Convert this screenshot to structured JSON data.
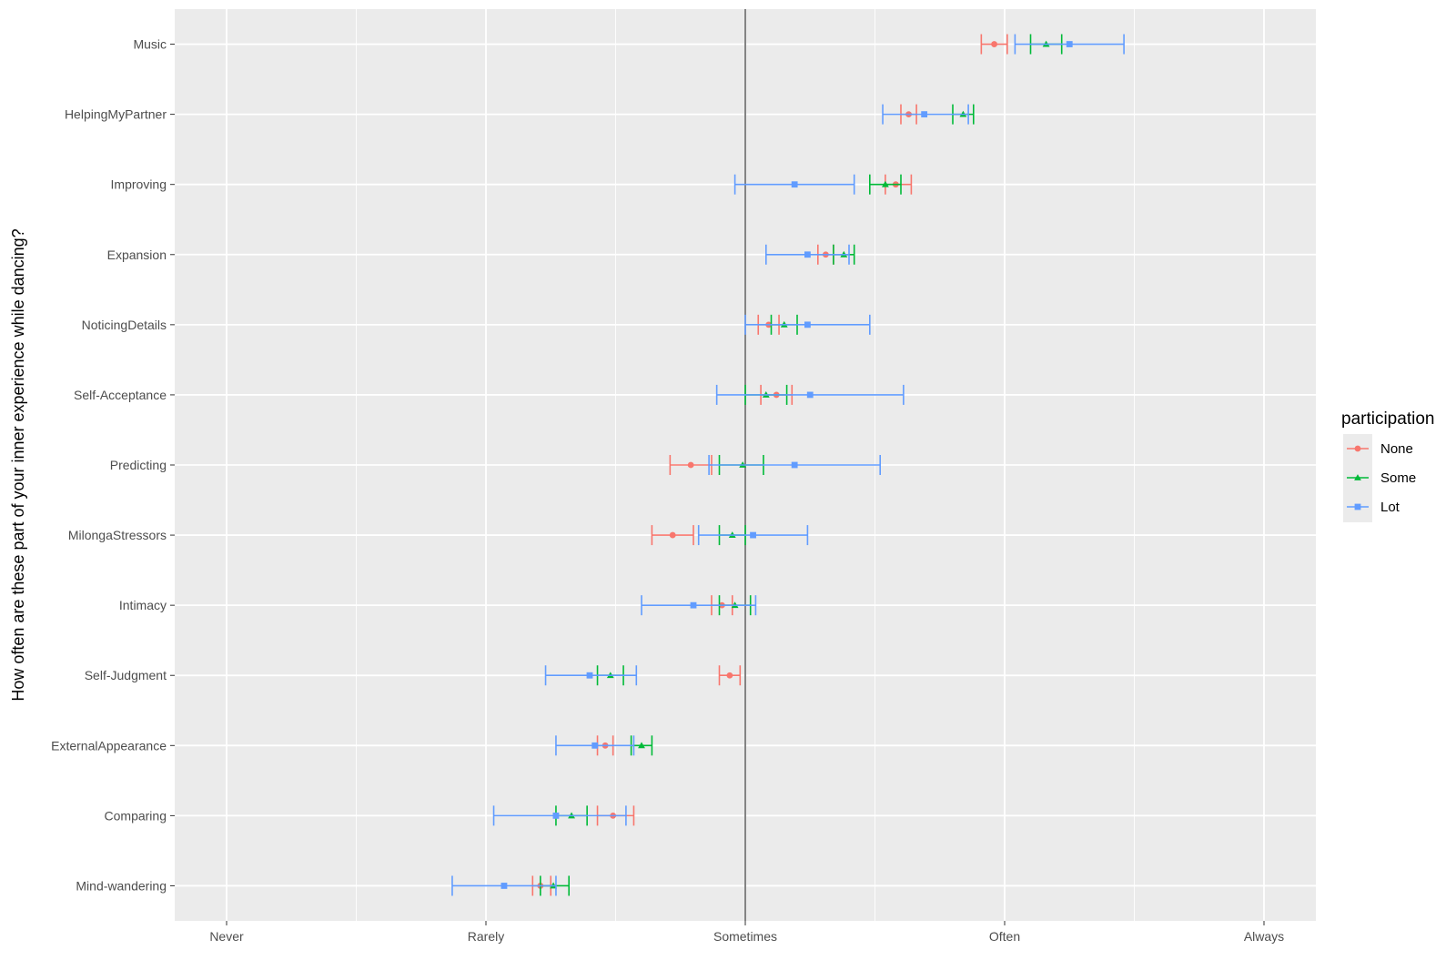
{
  "chart_data": {
    "type": "scatter",
    "subtype": "point-with-horizontal-error-bars",
    "title": "",
    "xlabel": "",
    "ylabel": "How often are these part of your inner experience while dancing?",
    "x_scale": "ordinal-likert",
    "x_ticks": [
      "Never",
      "Rarely",
      "Sometimes",
      "Often",
      "Always"
    ],
    "x_tick_values": [
      1,
      2,
      3,
      4,
      5
    ],
    "xlim": [
      0.8,
      5.2
    ],
    "reference_line_x": 3,
    "categories": [
      "Music",
      "HelpingMyPartner",
      "Improving",
      "Expansion",
      "NoticingDetails",
      "Self-Acceptance",
      "Predicting",
      "MilongaStressors",
      "Intimacy",
      "Self-Judgment",
      "ExternalAppearance",
      "Comparing",
      "Mind-wandering"
    ],
    "grid": true,
    "legend": {
      "title": "participation",
      "position": "right"
    },
    "series": [
      {
        "name": "None",
        "color": "#F8766D",
        "shape": "circle",
        "points": [
          {
            "category": "Music",
            "mean": 3.96,
            "lo": 3.91,
            "hi": 4.01
          },
          {
            "category": "HelpingMyPartner",
            "mean": 3.63,
            "lo": 3.6,
            "hi": 3.66
          },
          {
            "category": "Improving",
            "mean": 3.58,
            "lo": 3.54,
            "hi": 3.64
          },
          {
            "category": "Expansion",
            "mean": 3.31,
            "lo": 3.28,
            "hi": 3.34
          },
          {
            "category": "NoticingDetails",
            "mean": 3.09,
            "lo": 3.05,
            "hi": 3.13
          },
          {
            "category": "Self-Acceptance",
            "mean": 3.12,
            "lo": 3.06,
            "hi": 3.18
          },
          {
            "category": "Predicting",
            "mean": 2.79,
            "lo": 2.71,
            "hi": 2.87
          },
          {
            "category": "MilongaStressors",
            "mean": 2.72,
            "lo": 2.64,
            "hi": 2.8
          },
          {
            "category": "Intimacy",
            "mean": 2.91,
            "lo": 2.87,
            "hi": 2.95
          },
          {
            "category": "Self-Judgment",
            "mean": 2.94,
            "lo": 2.9,
            "hi": 2.98
          },
          {
            "category": "ExternalAppearance",
            "mean": 2.46,
            "lo": 2.43,
            "hi": 2.49
          },
          {
            "category": "Comparing",
            "mean": 2.49,
            "lo": 2.43,
            "hi": 2.57
          },
          {
            "category": "Mind-wandering",
            "mean": 2.21,
            "lo": 2.18,
            "hi": 2.25
          }
        ]
      },
      {
        "name": "Some",
        "color": "#00BA38",
        "shape": "triangle",
        "points": [
          {
            "category": "Music",
            "mean": 4.16,
            "lo": 4.1,
            "hi": 4.22
          },
          {
            "category": "HelpingMyPartner",
            "mean": 3.84,
            "lo": 3.8,
            "hi": 3.88
          },
          {
            "category": "Improving",
            "mean": 3.54,
            "lo": 3.48,
            "hi": 3.6
          },
          {
            "category": "Expansion",
            "mean": 3.38,
            "lo": 3.34,
            "hi": 3.42
          },
          {
            "category": "NoticingDetails",
            "mean": 3.15,
            "lo": 3.1,
            "hi": 3.2
          },
          {
            "category": "Self-Acceptance",
            "mean": 3.08,
            "lo": 3.0,
            "hi": 3.16
          },
          {
            "category": "Predicting",
            "mean": 2.99,
            "lo": 2.9,
            "hi": 3.07
          },
          {
            "category": "MilongaStressors",
            "mean": 2.95,
            "lo": 2.9,
            "hi": 3.0
          },
          {
            "category": "Intimacy",
            "mean": 2.96,
            "lo": 2.9,
            "hi": 3.02
          },
          {
            "category": "Self-Judgment",
            "mean": 2.48,
            "lo": 2.43,
            "hi": 2.53
          },
          {
            "category": "ExternalAppearance",
            "mean": 2.6,
            "lo": 2.56,
            "hi": 2.64
          },
          {
            "category": "Comparing",
            "mean": 2.33,
            "lo": 2.27,
            "hi": 2.39
          },
          {
            "category": "Mind-wandering",
            "mean": 2.26,
            "lo": 2.21,
            "hi": 2.32
          }
        ]
      },
      {
        "name": "Lot",
        "color": "#619CFF",
        "shape": "square",
        "points": [
          {
            "category": "Music",
            "mean": 4.25,
            "lo": 4.04,
            "hi": 4.46
          },
          {
            "category": "HelpingMyPartner",
            "mean": 3.69,
            "lo": 3.53,
            "hi": 3.86
          },
          {
            "category": "Improving",
            "mean": 3.19,
            "lo": 2.96,
            "hi": 3.42
          },
          {
            "category": "Expansion",
            "mean": 3.24,
            "lo": 3.08,
            "hi": 3.4
          },
          {
            "category": "NoticingDetails",
            "mean": 3.24,
            "lo": 3.0,
            "hi": 3.48
          },
          {
            "category": "Self-Acceptance",
            "mean": 3.25,
            "lo": 2.89,
            "hi": 3.61
          },
          {
            "category": "Predicting",
            "mean": 3.19,
            "lo": 2.86,
            "hi": 3.52
          },
          {
            "category": "MilongaStressors",
            "mean": 3.03,
            "lo": 2.82,
            "hi": 3.24
          },
          {
            "category": "Intimacy",
            "mean": 2.8,
            "lo": 2.6,
            "hi": 3.04
          },
          {
            "category": "Self-Judgment",
            "mean": 2.4,
            "lo": 2.23,
            "hi": 2.58
          },
          {
            "category": "ExternalAppearance",
            "mean": 2.42,
            "lo": 2.27,
            "hi": 2.57
          },
          {
            "category": "Comparing",
            "mean": 2.27,
            "lo": 2.03,
            "hi": 2.54
          },
          {
            "category": "Mind-wandering",
            "mean": 2.07,
            "lo": 1.87,
            "hi": 2.27
          }
        ]
      }
    ]
  },
  "colors": {
    "panel_background": "#EBEBEB",
    "grid_major": "#FFFFFF",
    "reference_line": "#666666"
  }
}
